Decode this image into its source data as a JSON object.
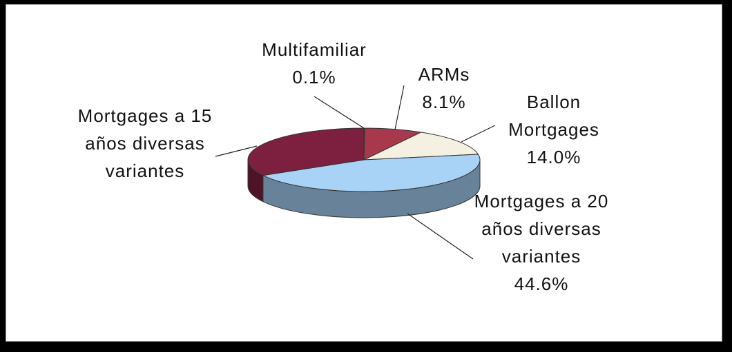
{
  "chart_data": {
    "type": "pie3d",
    "categories": [
      "Multifamiliar",
      "ARMs",
      "Ballon Mortgages",
      "Mortgages a 20 años diversas variantes",
      "Mortgages a 15 años diversas variantes"
    ],
    "values": [
      0.1,
      8.1,
      14.0,
      44.6,
      33.2
    ],
    "value_labels": [
      "0.1%",
      "8.1%",
      "14.0%",
      "44.6%",
      null
    ],
    "colors": [
      "#c9a0a8",
      "#a8384c",
      "#f4f1e2",
      "#a8d2f6",
      "#7d1f3f"
    ]
  }
}
